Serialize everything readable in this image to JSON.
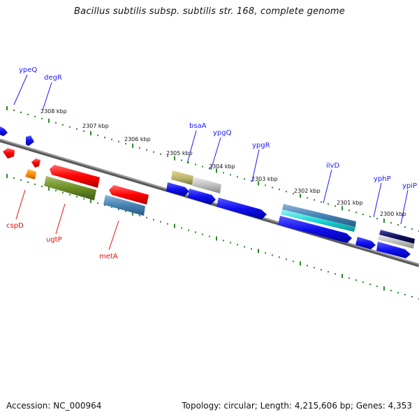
{
  "title": "Bacillus subtilis subsp. subtilis str. 168, complete genome",
  "accession": "Accession: NC_000964",
  "summary": "Topology: circular; Length: 4,215,606 bp; Genes: 4,353",
  "colors": {
    "backbone": "#7a7a7a",
    "ticks": "#2a8a2a",
    "forward_label": "#1a1aff",
    "reverse_label": "#dd1111"
  },
  "ruler": [
    {
      "label": "2308 kbp"
    },
    {
      "label": "2307 kbp"
    },
    {
      "label": "2306 kbp"
    },
    {
      "label": "2305 kbp"
    },
    {
      "label": "2304 kbp"
    },
    {
      "label": "2303 kbp"
    },
    {
      "label": "2302 kbp"
    },
    {
      "label": "2301 kbp"
    },
    {
      "label": "2300 kbp"
    }
  ],
  "gene_labels": [
    {
      "name": "ypeQ",
      "strand": "forward"
    },
    {
      "name": "degR",
      "strand": "forward"
    },
    {
      "name": "bsaA",
      "strand": "forward"
    },
    {
      "name": "ypgQ",
      "strand": "forward"
    },
    {
      "name": "ypgR",
      "strand": "forward"
    },
    {
      "name": "ilvD",
      "strand": "forward"
    },
    {
      "name": "yphP",
      "strand": "forward"
    },
    {
      "name": "ypiP",
      "strand": "forward"
    },
    {
      "name": "cspD",
      "strand": "reverse"
    },
    {
      "name": "ugtP",
      "strand": "reverse"
    },
    {
      "name": "metA",
      "strand": "reverse"
    }
  ]
}
